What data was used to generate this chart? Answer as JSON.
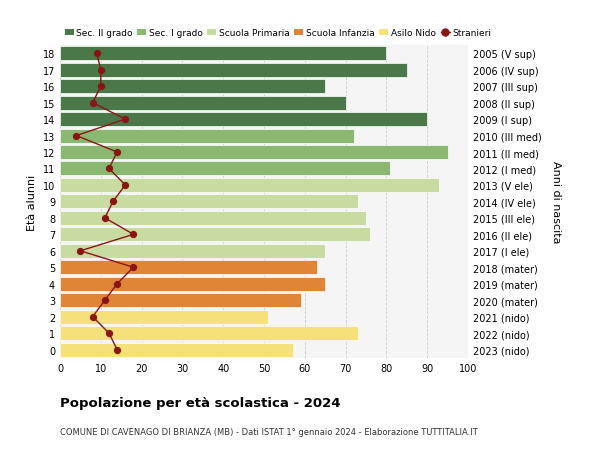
{
  "ages": [
    0,
    1,
    2,
    3,
    4,
    5,
    6,
    7,
    8,
    9,
    10,
    11,
    12,
    13,
    14,
    15,
    16,
    17,
    18
  ],
  "bar_values": [
    57,
    73,
    51,
    59,
    65,
    63,
    65,
    76,
    75,
    73,
    93,
    81,
    95,
    72,
    90,
    70,
    65,
    85,
    80
  ],
  "stranieri": [
    14,
    12,
    8,
    11,
    14,
    18,
    5,
    18,
    11,
    13,
    16,
    12,
    14,
    4,
    16,
    8,
    10,
    10,
    9
  ],
  "anni_nascita": [
    "2023 (nido)",
    "2022 (nido)",
    "2021 (nido)",
    "2020 (mater)",
    "2019 (mater)",
    "2018 (mater)",
    "2017 (I ele)",
    "2016 (II ele)",
    "2015 (III ele)",
    "2014 (IV ele)",
    "2013 (V ele)",
    "2012 (I med)",
    "2011 (II med)",
    "2010 (III med)",
    "2009 (I sup)",
    "2008 (II sup)",
    "2007 (III sup)",
    "2006 (IV sup)",
    "2005 (V sup)"
  ],
  "bar_colors": [
    "#f5e07a",
    "#f5e07a",
    "#f5e07a",
    "#e08535",
    "#e08535",
    "#e08535",
    "#c8dba0",
    "#c8dba0",
    "#c8dba0",
    "#c8dba0",
    "#c8dba0",
    "#8ab870",
    "#8ab870",
    "#8ab870",
    "#4a7848",
    "#4a7848",
    "#4a7848",
    "#4a7848",
    "#4a7848"
  ],
  "color_sec2": "#4a7848",
  "color_sec1": "#8ab870",
  "color_primaria": "#c8dba0",
  "color_infanzia": "#e08535",
  "color_nido": "#f5e07a",
  "color_stranieri": "#8b1515",
  "title": "Popolazione per età scolastica - 2024",
  "subtitle": "COMUNE DI CAVENAGO DI BRIANZA (MB) - Dati ISTAT 1° gennaio 2024 - Elaborazione TUTTITALIA.IT",
  "xlabel_left": "Età alunni",
  "ylabel_right": "Anni di nascita",
  "xlim": [
    0,
    100
  ],
  "legend_labels": [
    "Sec. II grado",
    "Sec. I grado",
    "Scuola Primaria",
    "Scuola Infanzia",
    "Asilo Nido",
    "Stranieri"
  ]
}
